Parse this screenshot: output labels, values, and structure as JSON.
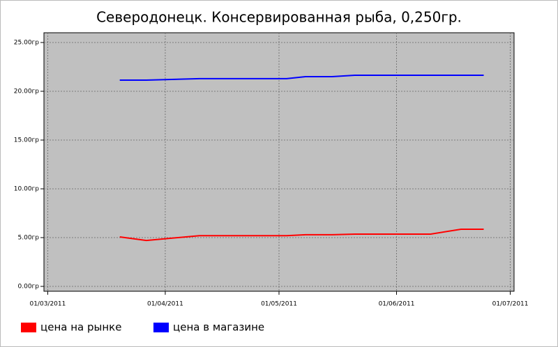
{
  "chart_data": {
    "type": "line",
    "title": "Северодонецк. Консервированная рыба, 0,250гр.",
    "x": [
      "2011-03-20",
      "2011-03-27",
      "2011-04-10",
      "2011-04-24",
      "2011-05-03",
      "2011-05-08",
      "2011-05-15",
      "2011-05-21",
      "2011-06-10",
      "2011-06-18",
      "2011-06-24"
    ],
    "series": [
      {
        "name": "цена на рынке",
        "color": "#ff0000",
        "values": [
          5.07,
          4.71,
          5.2,
          5.2,
          5.2,
          5.29,
          5.29,
          5.36,
          5.36,
          5.86,
          5.86
        ]
      },
      {
        "name": "цена в магазине",
        "color": "#0000ff",
        "values": [
          21.14,
          21.14,
          21.29,
          21.29,
          21.29,
          21.5,
          21.5,
          21.64,
          21.64,
          21.64,
          21.64
        ]
      }
    ],
    "xlim": [
      "2011-02-28",
      "2011-07-02"
    ],
    "xticks": [
      {
        "value": "2011-03-01",
        "label": "01/03/2011"
      },
      {
        "value": "2011-04-01",
        "label": "01/04/2011"
      },
      {
        "value": "2011-05-01",
        "label": "01/05/2011"
      },
      {
        "value": "2011-06-01",
        "label": "01/06/2011"
      },
      {
        "value": "2011-07-01",
        "label": "01/07/2011"
      }
    ],
    "ylim": [
      -0.5,
      26
    ],
    "yticks": [
      {
        "value": 0,
        "label": "0.00гр"
      },
      {
        "value": 5,
        "label": "5.00гр"
      },
      {
        "value": 10,
        "label": "10.00гр"
      },
      {
        "value": 15,
        "label": "15.00гр"
      },
      {
        "value": 20,
        "label": "20.00гр"
      },
      {
        "value": 25,
        "label": "25.00гр"
      }
    ],
    "grid": true,
    "legend": "bottom-left"
  }
}
